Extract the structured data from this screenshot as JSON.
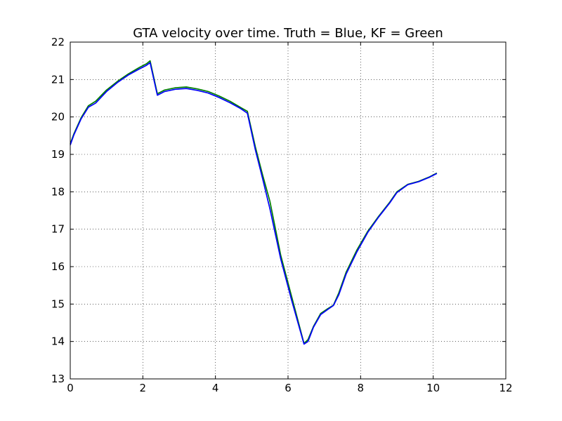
{
  "chart_data": {
    "type": "line",
    "title": "GTA velocity over time. Truth = Blue, KF = Green",
    "xlabel": "",
    "ylabel": "",
    "xlim": [
      0,
      12
    ],
    "ylim": [
      13,
      22
    ],
    "xticks": [
      0,
      2,
      4,
      6,
      8,
      10,
      12
    ],
    "yticks": [
      13,
      14,
      15,
      16,
      17,
      18,
      19,
      20,
      21,
      22
    ],
    "grid": true,
    "legend": "none",
    "series": [
      {
        "color": "#007f00",
        "x": [
          0,
          0.1,
          0.3,
          0.5,
          0.7,
          1.0,
          1.3,
          1.6,
          1.9,
          2.1,
          2.2,
          2.4,
          2.6,
          2.9,
          3.2,
          3.5,
          3.8,
          4.1,
          4.4,
          4.7,
          4.88,
          5.1,
          5.3,
          5.5,
          5.8,
          6.1,
          6.44,
          6.55,
          6.7,
          6.9,
          7.1,
          7.25,
          7.4,
          7.6,
          7.9,
          8.2,
          8.5,
          8.8,
          9.0,
          9.3,
          9.6,
          9.9,
          10.1
        ],
        "y": [
          19.28,
          19.55,
          19.98,
          20.3,
          20.42,
          20.72,
          20.95,
          21.15,
          21.32,
          21.42,
          21.5,
          20.62,
          20.72,
          20.78,
          20.8,
          20.75,
          20.68,
          20.56,
          20.42,
          20.25,
          20.15,
          19.2,
          18.45,
          17.75,
          16.3,
          15.2,
          13.95,
          14.05,
          14.4,
          14.75,
          14.88,
          14.97,
          15.3,
          15.85,
          16.45,
          16.95,
          17.35,
          17.72,
          18.0,
          18.2,
          18.28,
          18.4,
          18.5
        ]
      },
      {
        "color": "#0000ff",
        "x": [
          0,
          0.1,
          0.3,
          0.5,
          0.7,
          1.0,
          1.3,
          1.6,
          1.9,
          2.1,
          2.2,
          2.4,
          2.6,
          2.9,
          3.2,
          3.5,
          3.8,
          4.1,
          4.4,
          4.7,
          4.88,
          5.1,
          5.3,
          5.5,
          5.8,
          6.1,
          6.44,
          6.55,
          6.7,
          6.9,
          7.1,
          7.25,
          7.4,
          7.6,
          7.9,
          8.2,
          8.5,
          8.8,
          9.0,
          9.3,
          9.6,
          9.9,
          10.1
        ],
        "y": [
          19.25,
          19.52,
          19.95,
          20.26,
          20.37,
          20.68,
          20.92,
          21.12,
          21.28,
          21.38,
          21.45,
          20.58,
          20.68,
          20.74,
          20.76,
          20.71,
          20.64,
          20.52,
          20.38,
          20.22,
          20.1,
          19.12,
          18.35,
          17.55,
          16.2,
          15.1,
          13.93,
          14.0,
          14.38,
          14.72,
          14.86,
          14.96,
          15.25,
          15.8,
          16.4,
          16.92,
          17.33,
          17.7,
          17.98,
          18.19,
          18.27,
          18.39,
          18.49
        ]
      }
    ]
  }
}
